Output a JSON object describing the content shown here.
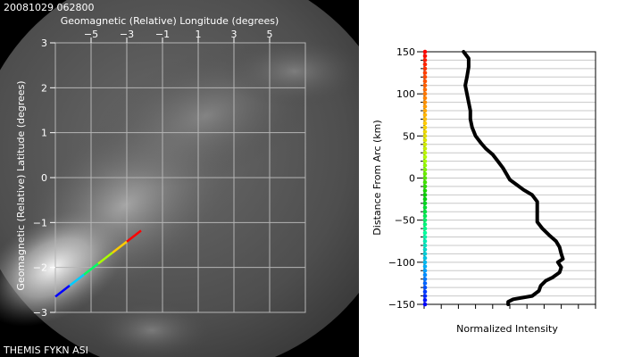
{
  "image": {
    "timestamp": "20081029 062800",
    "station_label": "THEMIS FYKN ASI"
  },
  "chart_data": [
    {
      "type": "scatter",
      "xlabel": "Geomagnetic (Relative) Longitude (degrees)",
      "ylabel": "Geomagnetic (Relative) Latitude (degrees)",
      "xlim": [
        -7,
        7
      ],
      "ylim": [
        -3,
        3
      ],
      "x_ticks": [
        -5,
        -3,
        -1,
        1,
        3,
        5
      ],
      "y_ticks": [
        3,
        2,
        1,
        0,
        -1,
        -2,
        -3
      ],
      "x_tick_labels": [
        "−5",
        "−3",
        "−1",
        "1",
        "3",
        "5"
      ],
      "y_tick_labels": [
        "3",
        "2",
        "1",
        "0",
        "−1",
        "−2",
        "−3"
      ],
      "grid": true,
      "arc_line": {
        "start": [
          -7,
          -2.65
        ],
        "end": [
          -2.2,
          -1.18
        ],
        "colormap": [
          "#0000ff",
          "#00ccff",
          "#00ff66",
          "#aaff00",
          "#ffcc00",
          "#ff0000"
        ]
      }
    },
    {
      "type": "line",
      "xlabel": "Normalized Intensity",
      "ylabel": "Distance From Arc (km)",
      "ylim": [
        -150,
        150
      ],
      "y_ticks": [
        150,
        100,
        50,
        0,
        -50,
        -100,
        -150
      ],
      "y_tick_labels": [
        "150",
        "100",
        "50",
        "0",
        "−50",
        "−100",
        "−150"
      ],
      "xlim": [
        0,
        1
      ],
      "grid": true,
      "colorbar": [
        "#0000ff",
        "#00aaff",
        "#00ff99",
        "#00cc00",
        "#aaff00",
        "#ffcc00",
        "#ff6600",
        "#ff0000"
      ],
      "series": [
        {
          "color": "#000000",
          "y": [
            150,
            142,
            132,
            120,
            110,
            100,
            90,
            80,
            70,
            60,
            50,
            42,
            35,
            28,
            20,
            12,
            5,
            -2,
            -8,
            -14,
            -20,
            -28,
            -35,
            -45,
            -52,
            -60,
            -68,
            -75,
            -82,
            -90,
            -96,
            -100,
            -106,
            -112,
            -118,
            -122,
            -128,
            -134,
            -140,
            -144,
            -147,
            -150
          ],
          "x": [
            0.23,
            0.26,
            0.26,
            0.25,
            0.24,
            0.25,
            0.26,
            0.27,
            0.27,
            0.28,
            0.3,
            0.33,
            0.36,
            0.4,
            0.43,
            0.46,
            0.48,
            0.5,
            0.54,
            0.58,
            0.63,
            0.66,
            0.66,
            0.66,
            0.66,
            0.69,
            0.73,
            0.77,
            0.79,
            0.8,
            0.81,
            0.78,
            0.8,
            0.79,
            0.75,
            0.71,
            0.68,
            0.67,
            0.63,
            0.52,
            0.49,
            0.49
          ]
        }
      ]
    }
  ]
}
